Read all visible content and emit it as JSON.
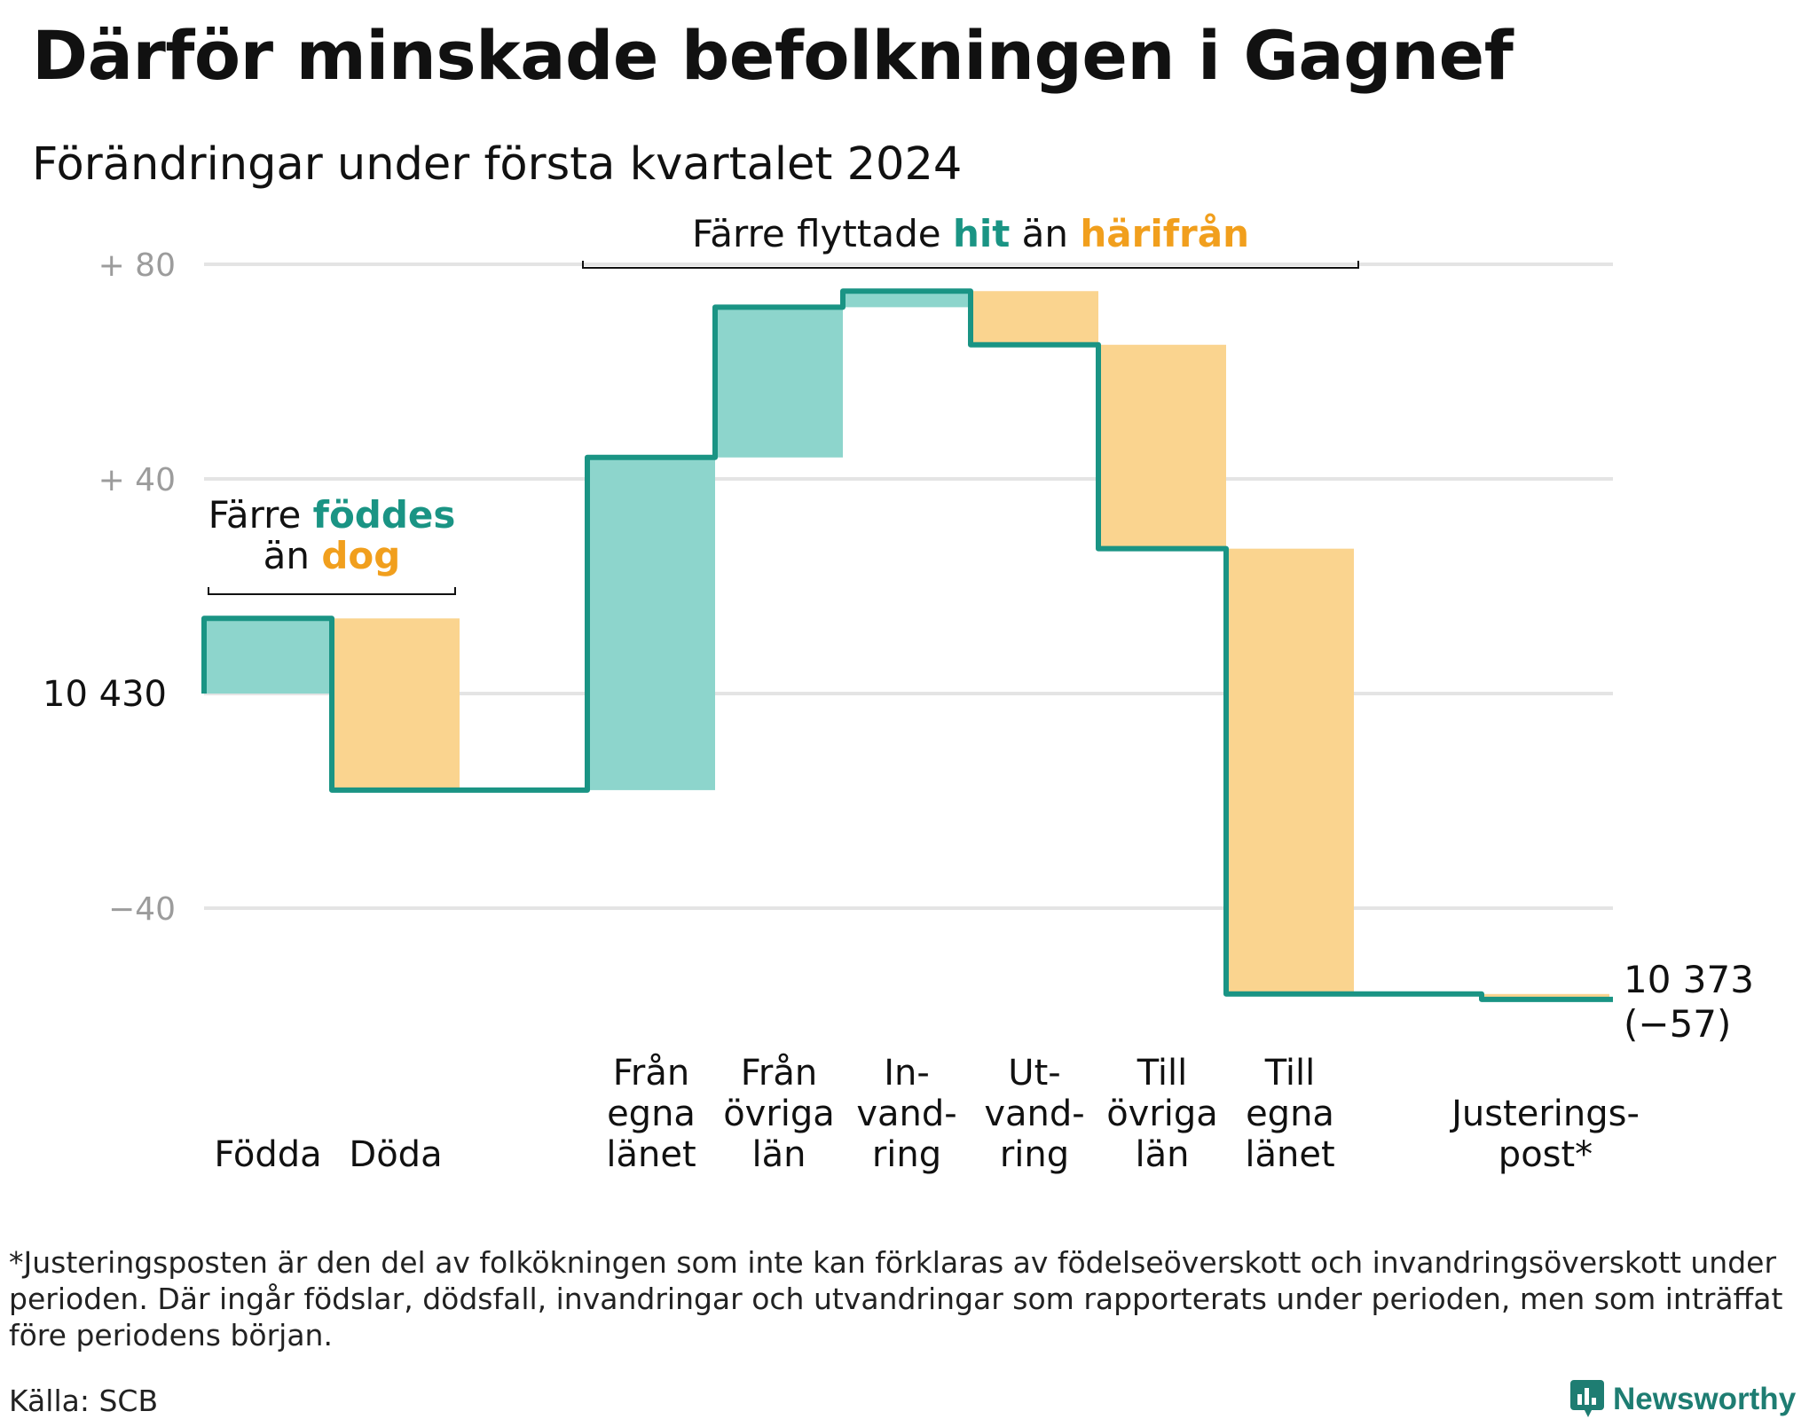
{
  "title": "Därför minskade befolkningen i Gagnef",
  "subtitle": "Förändringar under första kvartalet 2024",
  "chart_data": {
    "type": "waterfall",
    "start_value": 10430,
    "start_label": "10  430",
    "end_value": 10373,
    "end_label": "10 373",
    "end_change_label": "(−57)",
    "yrange": [
      -60,
      80
    ],
    "yticks": [
      {
        "value": 80,
        "label": "+  80"
      },
      {
        "value": 40,
        "label": "+  40"
      },
      {
        "value": 0,
        "label": ""
      },
      {
        "value": -40,
        "label": "−40"
      }
    ],
    "grid": true,
    "steps": [
      {
        "label": [
          "Födda"
        ],
        "change": 14,
        "kind": "in"
      },
      {
        "label": [
          "Döda"
        ],
        "change": -32,
        "kind": "out"
      },
      {
        "label": [],
        "change": 0,
        "kind": "gap"
      },
      {
        "label": [
          "Från",
          "egna",
          "länet"
        ],
        "change": 62,
        "kind": "in"
      },
      {
        "label": [
          "Från",
          "övriga",
          "län"
        ],
        "change": 28,
        "kind": "in"
      },
      {
        "label": [
          "In-",
          "vand-",
          "ring"
        ],
        "change": 3,
        "kind": "in"
      },
      {
        "label": [
          "Ut-",
          "vand-",
          "ring"
        ],
        "change": -10,
        "kind": "out"
      },
      {
        "label": [
          "Till",
          "övriga",
          "län"
        ],
        "change": -38,
        "kind": "out"
      },
      {
        "label": [
          "Till",
          "egna",
          "länet"
        ],
        "change": -83,
        "kind": "out"
      },
      {
        "label": [],
        "change": 0,
        "kind": "gap"
      },
      {
        "label": [
          "Justerings-",
          "post*"
        ],
        "change": -1,
        "kind": "out"
      }
    ],
    "annotations": [
      {
        "parts": [
          "Färre ",
          "föddes"
        ],
        "parts2": [
          "än ",
          "dog"
        ],
        "spans": [
          0,
          1
        ]
      },
      {
        "parts": [
          "Färre flyttade ",
          "hit",
          " än ",
          "härifrån"
        ],
        "spans": [
          3,
          8
        ]
      }
    ],
    "colors": {
      "in": "#8dd5cc",
      "out": "#fad48f",
      "line": "#1a9484",
      "in_text": "#1a9484",
      "out_text": "#f19f1d",
      "grid": "#e4e4e4",
      "tick": "#9c9c9c"
    }
  },
  "footnote": "*Justeringsposten är den del av folkökningen som inte kan förklaras av födelseöverskott och invandringsöverskott under perioden. Där ingår födslar, dödsfall, invandringar och utvandringar som rapporterats under perioden, men som inträffat före periodens början.",
  "source": "Källa: SCB",
  "brand": "Newsworthy",
  "brand_icon": "newsworthy-chat-bar-icon"
}
